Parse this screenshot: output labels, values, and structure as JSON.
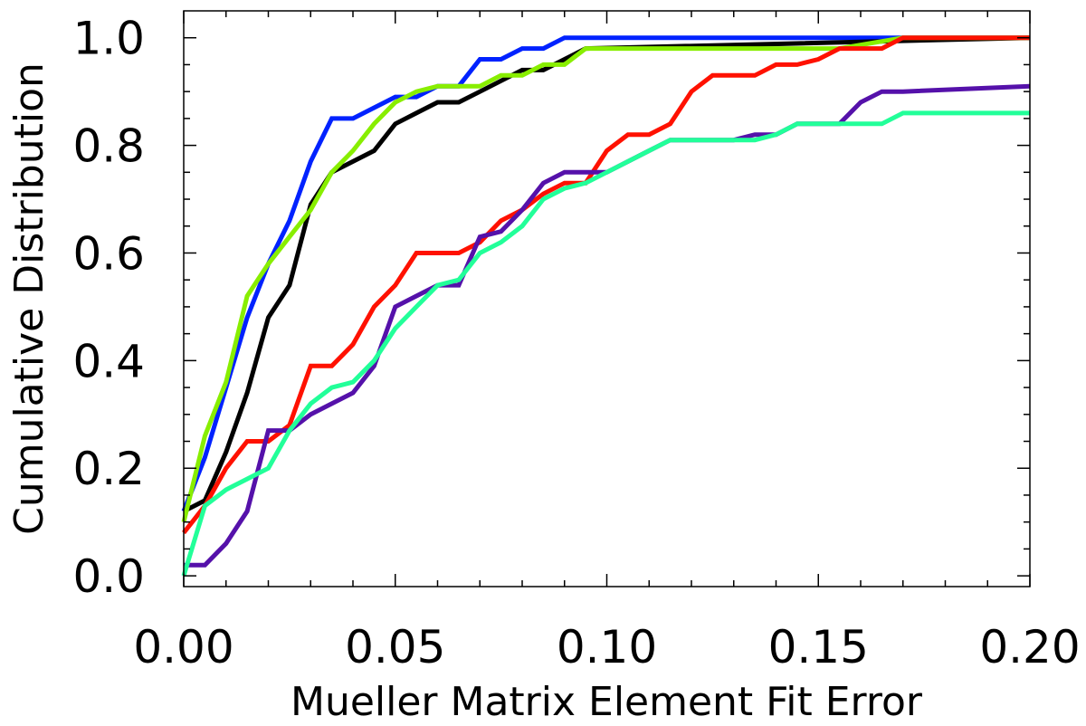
{
  "chart_data": {
    "type": "line",
    "title": "",
    "xlabel": "Mueller Matrix Element Fit Error",
    "ylabel": "Cumulative Distribution",
    "xlim": [
      0,
      0.2
    ],
    "ylim": [
      -0.02,
      1.05
    ],
    "xticks": [
      0,
      0.05,
      0.1,
      0.15,
      0.2
    ],
    "xtick_labels": [
      "0.00",
      "0.05",
      "0.10",
      "0.15",
      "0.20"
    ],
    "yticks": [
      0,
      0.2,
      0.4,
      0.6,
      0.8,
      1.0
    ],
    "ytick_labels": [
      "0.0",
      "0.2",
      "0.4",
      "0.6",
      "0.8",
      "1.0"
    ],
    "grid": false,
    "legend": "none",
    "series": [
      {
        "color": "#0022ff",
        "x": [
          0,
          0.005,
          0.01,
          0.015,
          0.02,
          0.025,
          0.03,
          0.035,
          0.04,
          0.045,
          0.05,
          0.055,
          0.06,
          0.065,
          0.07,
          0.075,
          0.08,
          0.085,
          0.09,
          0.2
        ],
        "y": [
          0.12,
          0.22,
          0.35,
          0.48,
          0.58,
          0.66,
          0.77,
          0.85,
          0.85,
          0.87,
          0.89,
          0.89,
          0.91,
          0.91,
          0.96,
          0.96,
          0.98,
          0.98,
          1.0,
          1.0
        ]
      },
      {
        "color": "#000000",
        "x": [
          0,
          0.005,
          0.01,
          0.015,
          0.02,
          0.025,
          0.03,
          0.035,
          0.04,
          0.045,
          0.05,
          0.055,
          0.06,
          0.065,
          0.07,
          0.075,
          0.08,
          0.085,
          0.09,
          0.095,
          0.2
        ],
        "y": [
          0.12,
          0.14,
          0.23,
          0.34,
          0.48,
          0.54,
          0.69,
          0.75,
          0.77,
          0.79,
          0.84,
          0.86,
          0.88,
          0.88,
          0.9,
          0.92,
          0.94,
          0.94,
          0.96,
          0.98,
          1.0
        ]
      },
      {
        "color": "#88ee00",
        "x": [
          0,
          0.005,
          0.01,
          0.015,
          0.02,
          0.025,
          0.03,
          0.035,
          0.04,
          0.045,
          0.05,
          0.055,
          0.06,
          0.065,
          0.07,
          0.075,
          0.08,
          0.085,
          0.09,
          0.095,
          0.155,
          0.17,
          0.2
        ],
        "y": [
          0.1,
          0.26,
          0.36,
          0.52,
          0.58,
          0.63,
          0.68,
          0.75,
          0.79,
          0.84,
          0.88,
          0.9,
          0.91,
          0.91,
          0.91,
          0.93,
          0.93,
          0.95,
          0.95,
          0.98,
          0.98,
          1.0,
          1.0
        ]
      },
      {
        "color": "#ff1100",
        "x": [
          0,
          0.005,
          0.01,
          0.015,
          0.02,
          0.025,
          0.03,
          0.035,
          0.04,
          0.045,
          0.05,
          0.055,
          0.06,
          0.065,
          0.07,
          0.075,
          0.08,
          0.085,
          0.09,
          0.095,
          0.1,
          0.105,
          0.11,
          0.115,
          0.12,
          0.125,
          0.13,
          0.135,
          0.14,
          0.145,
          0.15,
          0.155,
          0.16,
          0.165,
          0.17,
          0.2
        ],
        "y": [
          0.08,
          0.13,
          0.2,
          0.25,
          0.25,
          0.28,
          0.39,
          0.39,
          0.43,
          0.5,
          0.54,
          0.6,
          0.6,
          0.6,
          0.62,
          0.66,
          0.68,
          0.71,
          0.73,
          0.73,
          0.79,
          0.82,
          0.82,
          0.84,
          0.9,
          0.93,
          0.93,
          0.93,
          0.95,
          0.95,
          0.96,
          0.98,
          0.98,
          0.98,
          1.0,
          1.0
        ]
      },
      {
        "color": "#5511aa",
        "x": [
          0,
          0.005,
          0.01,
          0.015,
          0.02,
          0.025,
          0.03,
          0.035,
          0.04,
          0.045,
          0.05,
          0.055,
          0.06,
          0.065,
          0.07,
          0.075,
          0.08,
          0.085,
          0.09,
          0.095,
          0.1,
          0.105,
          0.11,
          0.115,
          0.12,
          0.125,
          0.13,
          0.135,
          0.14,
          0.145,
          0.15,
          0.155,
          0.16,
          0.165,
          0.17,
          0.2
        ],
        "y": [
          0.02,
          0.02,
          0.06,
          0.12,
          0.27,
          0.27,
          0.3,
          0.32,
          0.34,
          0.39,
          0.5,
          0.52,
          0.54,
          0.54,
          0.63,
          0.64,
          0.68,
          0.73,
          0.75,
          0.75,
          0.75,
          0.77,
          0.79,
          0.81,
          0.81,
          0.81,
          0.81,
          0.82,
          0.82,
          0.84,
          0.84,
          0.84,
          0.88,
          0.9,
          0.9,
          0.91
        ]
      },
      {
        "color": "#22ff99",
        "x": [
          0,
          0.005,
          0.01,
          0.015,
          0.02,
          0.025,
          0.03,
          0.035,
          0.04,
          0.045,
          0.05,
          0.055,
          0.06,
          0.065,
          0.07,
          0.075,
          0.08,
          0.085,
          0.09,
          0.095,
          0.1,
          0.105,
          0.11,
          0.115,
          0.12,
          0.125,
          0.13,
          0.135,
          0.14,
          0.145,
          0.15,
          0.155,
          0.16,
          0.165,
          0.17,
          0.2
        ],
        "y": [
          0.0,
          0.13,
          0.16,
          0.18,
          0.2,
          0.27,
          0.32,
          0.35,
          0.36,
          0.4,
          0.46,
          0.5,
          0.54,
          0.55,
          0.6,
          0.62,
          0.65,
          0.7,
          0.72,
          0.73,
          0.75,
          0.77,
          0.79,
          0.81,
          0.81,
          0.81,
          0.81,
          0.81,
          0.82,
          0.84,
          0.84,
          0.84,
          0.84,
          0.84,
          0.86,
          0.86
        ]
      }
    ]
  }
}
